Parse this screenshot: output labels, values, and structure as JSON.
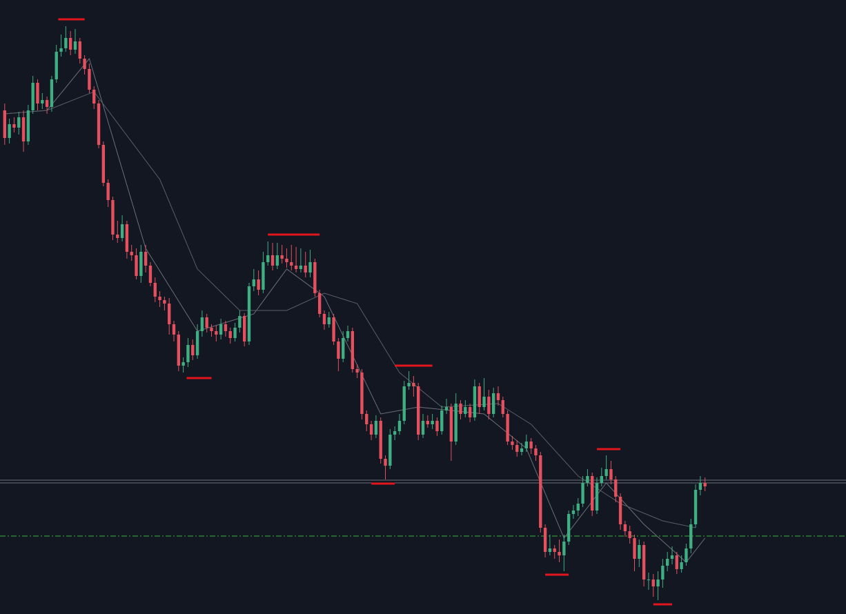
{
  "chart_data": {
    "type": "candlestick",
    "xlim": [
      -1,
      179
    ],
    "ylim": [
      10,
      900
    ],
    "up_color": "#3fae82",
    "down_color": "#e5505f",
    "candles": {
      "open": [
        740,
        700,
        720,
        715,
        730,
        695,
        740,
        780,
        750,
        755,
        745,
        785,
        825,
        830,
        845,
        828,
        840,
        815,
        800,
        770,
        750,
        690,
        635,
        610,
        560,
        555,
        575,
        535,
        530,
        500,
        535,
        515,
        490,
        470,
        465,
        460,
        430,
        415,
        370,
        375,
        400,
        385,
        420,
        440,
        425,
        420,
        415,
        430,
        420,
        410,
        425,
        442,
        405,
        485,
        495,
        480,
        520,
        530,
        515,
        530,
        525,
        520,
        515,
        510,
        515,
        505,
        520,
        475,
        445,
        430,
        440,
        405,
        380,
        410,
        420,
        365,
        360,
        300,
        285,
        270,
        290,
        235,
        225,
        270,
        275,
        290,
        340,
        345,
        340,
        270,
        290,
        285,
        290,
        275,
        305,
        310,
        260,
        315,
        300,
        310,
        295,
        340,
        310,
        325,
        300,
        330,
        320,
        300,
        260,
        255,
        245,
        250,
        260,
        250,
        240,
        135,
        100,
        105,
        100,
        95,
        115,
        155,
        160,
        170,
        200,
        210,
        160,
        200,
        210,
        220,
        205,
        180,
        140,
        130,
        120,
        90,
        110,
        60,
        60,
        50,
        60,
        80,
        90,
        95,
        75,
        85,
        105,
        140,
        190,
        200
      ],
      "high": [
        750,
        728,
        730,
        738,
        740,
        748,
        790,
        785,
        765,
        760,
        790,
        835,
        850,
        862,
        855,
        858,
        845,
        820,
        808,
        775,
        755,
        695,
        640,
        615,
        580,
        588,
        580,
        545,
        540,
        545,
        545,
        520,
        498,
        478,
        470,
        468,
        435,
        420,
        382,
        410,
        408,
        430,
        450,
        445,
        430,
        428,
        438,
        435,
        425,
        432,
        450,
        446,
        490,
        510,
        508,
        535,
        550,
        548,
        548,
        545,
        540,
        545,
        542,
        540,
        535,
        538,
        525,
        480,
        450,
        448,
        445,
        410,
        420,
        428,
        425,
        372,
        365,
        305,
        290,
        298,
        295,
        240,
        278,
        282,
        300,
        348,
        362,
        355,
        345,
        300,
        298,
        300,
        295,
        312,
        322,
        315,
        330,
        320,
        320,
        315,
        350,
        345,
        352,
        335,
        338,
        340,
        325,
        305,
        268,
        262,
        258,
        270,
        265,
        255,
        245,
        140,
        125,
        110,
        118,
        125,
        160,
        168,
        178,
        210,
        220,
        215,
        208,
        222,
        240,
        232,
        210,
        185,
        145,
        138,
        125,
        118,
        115,
        70,
        68,
        72,
        90,
        100,
        108,
        100,
        95,
        112,
        148,
        198,
        210,
        208
      ],
      "low": [
        690,
        692,
        708,
        705,
        680,
        690,
        735,
        740,
        742,
        735,
        738,
        780,
        818,
        825,
        820,
        822,
        808,
        792,
        765,
        742,
        685,
        630,
        600,
        552,
        548,
        550,
        525,
        522,
        495,
        490,
        505,
        485,
        462,
        455,
        450,
        415,
        405,
        362,
        360,
        368,
        378,
        380,
        412,
        418,
        412,
        405,
        408,
        412,
        402,
        405,
        418,
        398,
        400,
        478,
        472,
        475,
        515,
        508,
        510,
        518,
        512,
        508,
        505,
        505,
        498,
        498,
        470,
        440,
        422,
        425,
        400,
        362,
        375,
        405,
        360,
        352,
        292,
        275,
        262,
        265,
        228,
        205,
        220,
        262,
        270,
        285,
        335,
        325,
        262,
        265,
        280,
        278,
        268,
        270,
        300,
        232,
        255,
        292,
        295,
        288,
        290,
        300,
        305,
        292,
        295,
        312,
        295,
        255,
        248,
        238,
        240,
        245,
        242,
        232,
        128,
        92,
        95,
        90,
        85,
        72,
        110,
        148,
        152,
        165,
        195,
        152,
        155,
        195,
        205,
        198,
        172,
        132,
        122,
        112,
        72,
        78,
        50,
        45,
        35,
        30,
        48,
        72,
        82,
        68,
        70,
        80,
        98,
        135,
        182,
        188
      ],
      "close": [
        700,
        720,
        715,
        730,
        695,
        740,
        780,
        750,
        755,
        745,
        785,
        825,
        830,
        845,
        828,
        840,
        815,
        800,
        770,
        750,
        690,
        635,
        610,
        560,
        555,
        575,
        535,
        530,
        500,
        535,
        515,
        490,
        470,
        465,
        460,
        430,
        415,
        370,
        375,
        400,
        385,
        420,
        440,
        425,
        420,
        415,
        430,
        420,
        410,
        425,
        442,
        405,
        485,
        495,
        480,
        520,
        530,
        515,
        530,
        525,
        520,
        515,
        510,
        515,
        505,
        520,
        475,
        445,
        430,
        440,
        405,
        380,
        410,
        420,
        365,
        360,
        300,
        285,
        270,
        290,
        235,
        225,
        270,
        275,
        290,
        340,
        345,
        340,
        270,
        290,
        285,
        290,
        275,
        305,
        310,
        260,
        315,
        300,
        310,
        295,
        340,
        310,
        325,
        300,
        330,
        320,
        300,
        260,
        255,
        245,
        250,
        260,
        250,
        240,
        135,
        100,
        105,
        100,
        95,
        115,
        155,
        160,
        170,
        200,
        210,
        160,
        200,
        210,
        220,
        205,
        180,
        140,
        130,
        120,
        90,
        110,
        60,
        60,
        50,
        60,
        80,
        90,
        95,
        75,
        85,
        105,
        140,
        190,
        200,
        195
      ]
    },
    "lines": [
      {
        "color": "#6b6f78",
        "x": [
          0,
          9,
          18,
          30,
          41,
          53,
          60,
          68,
          80,
          88,
          102,
          111,
          119,
          128,
          136,
          145,
          149
        ],
        "values": [
          735,
          740,
          815,
          540,
          420,
          445,
          510,
          470,
          300,
          310,
          300,
          250,
          120,
          200,
          140,
          85,
          120
        ]
      },
      {
        "color": "#5a5e66",
        "x": [
          0,
          9,
          19,
          33,
          41,
          50,
          60,
          68,
          75,
          84,
          93,
          105,
          112,
          122,
          131,
          140,
          147
        ],
        "values": [
          735,
          740,
          767,
          640,
          510,
          450,
          450,
          475,
          460,
          360,
          310,
          315,
          285,
          210,
          170,
          145,
          135
        ]
      }
    ],
    "levels": [
      {
        "value": 872,
        "x": [
          11.4,
          17
        ]
      },
      {
        "value": 560,
        "x": [
          56,
          67
        ]
      },
      {
        "value": 352,
        "x": [
          38.7,
          44
        ]
      },
      {
        "value": 370,
        "x": [
          83,
          91
        ]
      },
      {
        "value": 199,
        "x": [
          78,
          83
        ]
      },
      {
        "value": 249,
        "x": [
          126,
          131
        ]
      },
      {
        "value": 67,
        "x": [
          115,
          120
        ]
      },
      {
        "value": 24,
        "x": [
          138,
          142
        ]
      }
    ],
    "level_color": "#e3161d",
    "hlines": [
      {
        "value": 204,
        "color": "#6d7079",
        "style": "solid"
      },
      {
        "value": 200,
        "color": "#6d7079",
        "style": "solid"
      },
      {
        "value": 123,
        "color": "#3bb33b",
        "style": "dashdot"
      }
    ]
  }
}
